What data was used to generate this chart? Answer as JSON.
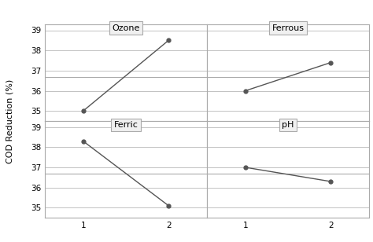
{
  "panels": [
    {
      "title": "Ozone",
      "x": [
        1,
        2
      ],
      "y": [
        35.0,
        38.5
      ]
    },
    {
      "title": "Ferrous",
      "x": [
        1,
        2
      ],
      "y": [
        36.0,
        37.4
      ]
    },
    {
      "title": "Ferric",
      "x": [
        1,
        2
      ],
      "y": [
        38.3,
        35.1
      ]
    },
    {
      "title": "pH",
      "x": [
        1,
        2
      ],
      "y": [
        37.0,
        36.3
      ]
    }
  ],
  "ref_line": 36.7,
  "ylim": [
    34.5,
    39.3
  ],
  "yticks": [
    35,
    36,
    37,
    38,
    39
  ],
  "xticks": [
    1,
    2
  ],
  "ylabel": "COD Reduction (%)",
  "line_color": "#555555",
  "marker": "o",
  "markersize": 3.5,
  "title_fontsize": 8,
  "tick_fontsize": 7.5,
  "label_fontsize": 8,
  "ref_line_color": "#aaaaaa",
  "spine_color": "#aaaaaa",
  "background_color": "#ffffff",
  "header_bg": "#f0f0f0"
}
